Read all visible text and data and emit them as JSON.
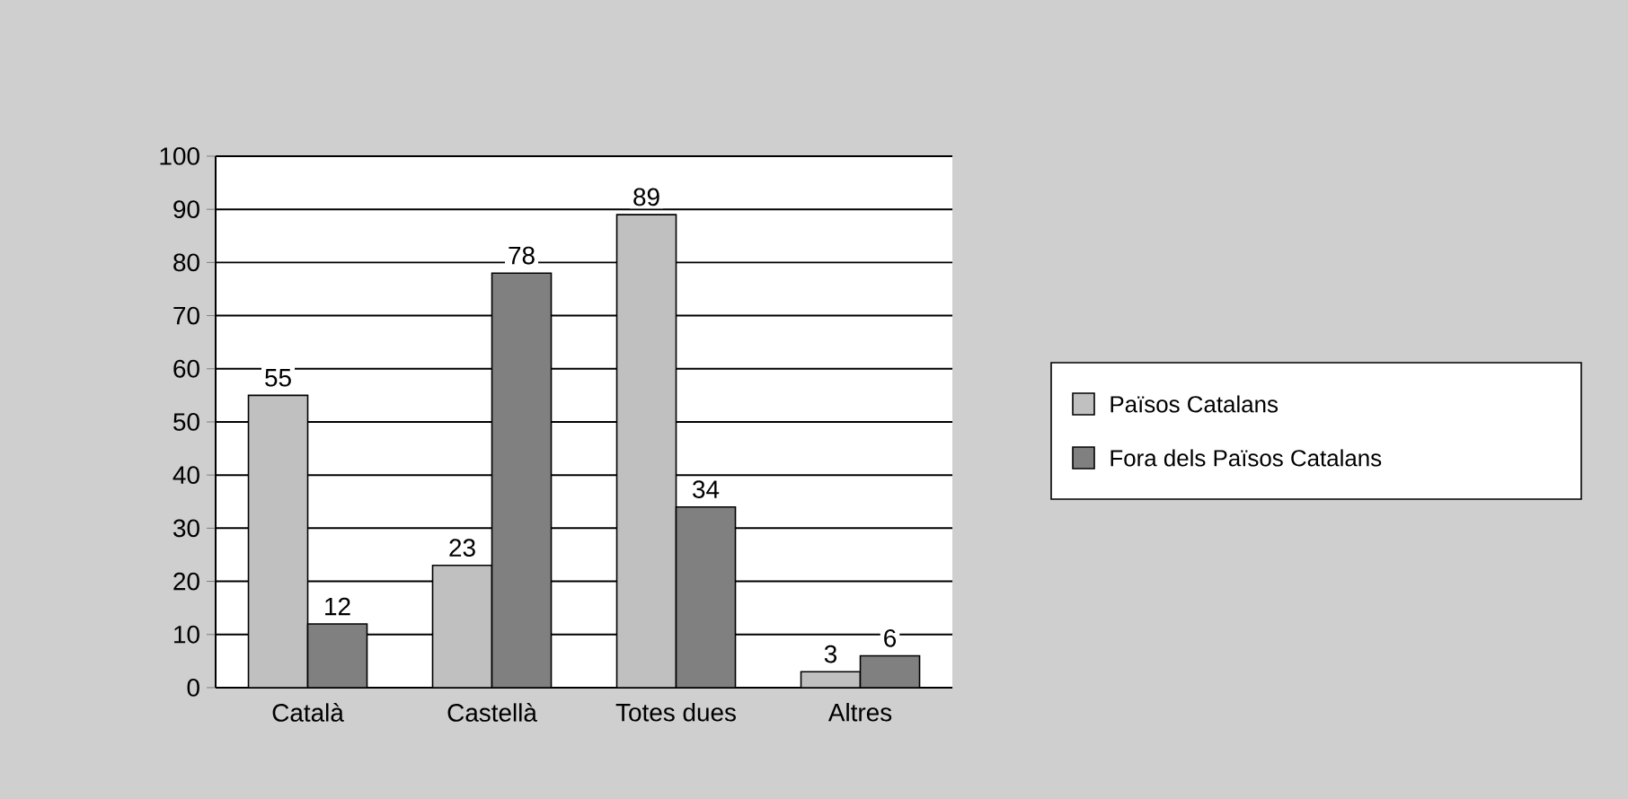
{
  "chart_data": {
    "type": "bar",
    "categories": [
      "Català",
      "Castellà",
      "Totes dues",
      "Altres"
    ],
    "series": [
      {
        "name": "Països Catalans",
        "color": "#c0c0c0",
        "values": [
          55,
          23,
          89,
          3
        ]
      },
      {
        "name": "Fora dels Països Catalans",
        "color": "#808080",
        "values": [
          12,
          78,
          34,
          6
        ]
      }
    ],
    "ylim": [
      0,
      100
    ],
    "yticks": [
      0,
      10,
      20,
      30,
      40,
      50,
      60,
      70,
      80,
      90,
      100
    ],
    "grid": "y",
    "legend": "right",
    "data_labels": true
  }
}
